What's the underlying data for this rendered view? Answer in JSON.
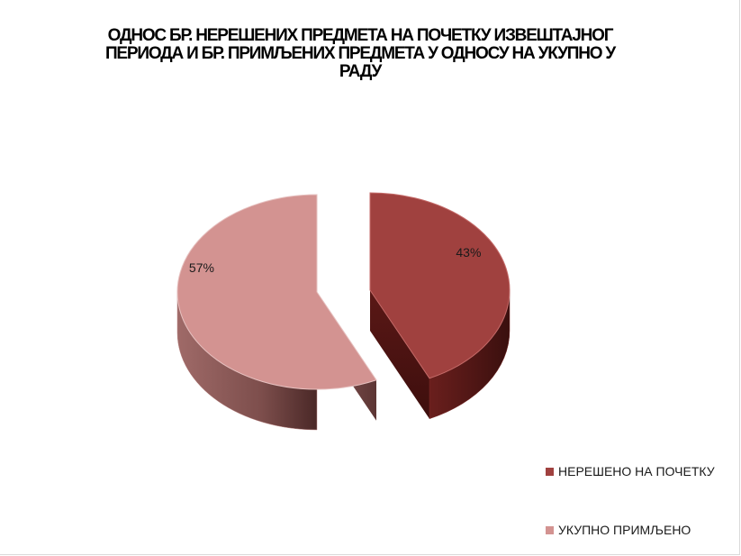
{
  "chart_data": {
    "type": "pie",
    "title_lines": [
      "ОДНОС БР. НЕРЕШЕНИХ ПРЕДМЕТА НА ПОЧЕТКУ ИЗВЕШТАЈНОГ",
      "ПЕРИОДА И БР. ПРИМЉЕНИХ ПРЕДМЕТА  У ОДНОСУ НА УКУПНО У",
      "РАДУ"
    ],
    "slices": [
      {
        "name": "НЕРЕШЕНО НА ПОЧЕТКУ",
        "value": 43,
        "label": "43%",
        "color": "#a0413f"
      },
      {
        "name": "УКУПНО ПРИМЉЕНО",
        "value": 57,
        "label": "57%",
        "color": "#d39391"
      }
    ],
    "legend_position": "right",
    "exploded": true,
    "three_d": true
  }
}
